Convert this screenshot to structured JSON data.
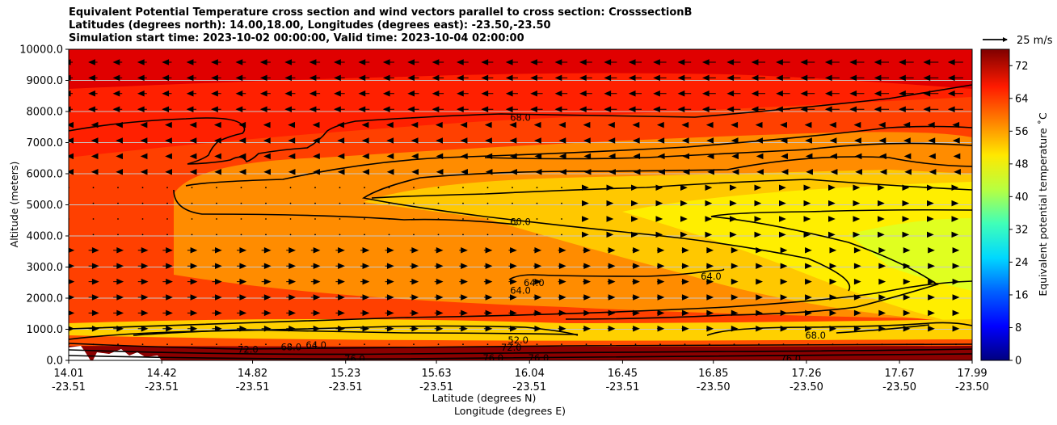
{
  "chart_data": {
    "type": "contourf",
    "title_lines": [
      "Equivalent Potential Temperature cross section and wind vectors parallel to cross section: CrosssectionB",
      "Latitudes (degrees north): 14.00,18.00, Longitudes (degrees east): -23.50,-23.50",
      "Simulation start time: 2023-10-02 00:00:00, Valid time: 2023-10-04 02:00:00"
    ],
    "ylabel": "Altitude (meters)",
    "xlabel_lat": "Latitude (degrees N)",
    "xlabel_lon": "Longitude (degrees E)",
    "ylim": [
      0,
      10000
    ],
    "yticks": [
      "0.0",
      "1000.0",
      "2000.0",
      "3000.0",
      "4000.0",
      "5000.0",
      "6000.0",
      "7000.0",
      "8000.0",
      "9000.0",
      "10000.0"
    ],
    "xlim": [
      14.01,
      17.99
    ],
    "xticks": [
      {
        "lat": "14.01",
        "lon": "-23.51"
      },
      {
        "lat": "14.42",
        "lon": "-23.51"
      },
      {
        "lat": "14.82",
        "lon": "-23.51"
      },
      {
        "lat": "15.23",
        "lon": "-23.51"
      },
      {
        "lat": "15.63",
        "lon": "-23.51"
      },
      {
        "lat": "16.04",
        "lon": "-23.51"
      },
      {
        "lat": "16.45",
        "lon": "-23.51"
      },
      {
        "lat": "16.85",
        "lon": "-23.50"
      },
      {
        "lat": "17.26",
        "lon": "-23.50"
      },
      {
        "lat": "17.67",
        "lon": "-23.50"
      },
      {
        "lat": "17.99",
        "lon": "-23.50"
      }
    ],
    "colorbar": {
      "label": "Equivalent potential temperature $^\\circ$C",
      "label_text": "Equivalent potential temperature ˚C",
      "range": [
        0,
        76
      ],
      "ticks": [
        "0",
        "8",
        "16",
        "24",
        "32",
        "40",
        "48",
        "56",
        "64",
        "72"
      ]
    },
    "quiver_key": "25 m/s",
    "contour_labels": [
      {
        "text": "68.0",
        "lat": 16.0,
        "alt": 7800
      },
      {
        "text": "60.0",
        "lat": 16.0,
        "alt": 4450
      },
      {
        "text": "64.0",
        "lat": 16.0,
        "alt": 2250
      },
      {
        "text": "64.0",
        "lat": 16.06,
        "alt": 2500
      },
      {
        "text": "64.0",
        "lat": 16.84,
        "alt": 2700
      },
      {
        "text": "68.0",
        "lat": 17.3,
        "alt": 800
      },
      {
        "text": "52.0",
        "lat": 15.99,
        "alt": 650
      },
      {
        "text": "72.0",
        "lat": 14.8,
        "alt": 350
      },
      {
        "text": "68.0",
        "lat": 14.99,
        "alt": 430
      },
      {
        "text": "64.0",
        "lat": 15.1,
        "alt": 500
      },
      {
        "text": "76.0",
        "lat": 15.27,
        "alt": 50
      },
      {
        "text": "76.0",
        "lat": 15.88,
        "alt": 80
      },
      {
        "text": "76.0",
        "lat": 16.08,
        "alt": 80
      },
      {
        "text": "72.0",
        "lat": 15.96,
        "alt": 420
      },
      {
        "text": "76.0",
        "lat": 17.19,
        "alt": 50
      }
    ]
  },
  "colors": {
    "dark_red": "#8b0000",
    "red": "#e60000",
    "orange_red": "#ff4000",
    "orange": "#ff8c00",
    "yellow_orange": "#ffc800",
    "yellow": "#ffee00",
    "yellow_green": "#e0ff20"
  }
}
